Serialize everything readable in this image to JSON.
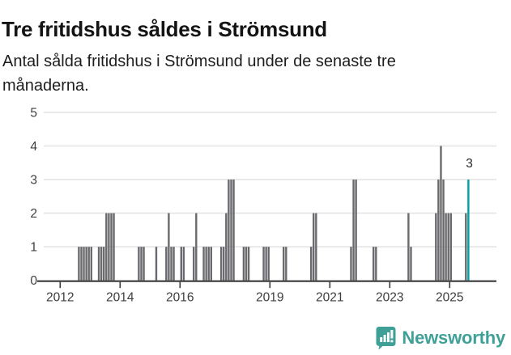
{
  "title": "Tre fritidshus såldes i Strömsund",
  "subtitle_lines": [
    "Antal sålda fritidshus i Strömsund under de senaste tre",
    "månaderna."
  ],
  "logo": {
    "text": "Newsworthy"
  },
  "colors": {
    "bar": "#6a6a6e",
    "highlight": "#00a0a0",
    "grid": "#e4e4e4",
    "axis": "#3a3a3a",
    "tick_text": "#3d3d3d",
    "annotation_text": "#2b2b2b",
    "logo": "#3fa098"
  },
  "chart_data": {
    "type": "bar",
    "title": "Tre fritidshus såldes i Strömsund",
    "subtitle": "Antal sålda fritidshus i Strömsund under de senaste tre månaderna.",
    "xlabel": "",
    "ylabel": "",
    "unit": "months",
    "x_range": [
      "2012-01",
      "2025-08"
    ],
    "ylim": [
      0,
      5
    ],
    "yticks": [
      0,
      1,
      2,
      3,
      4,
      5
    ],
    "xticks": [
      2012,
      2014,
      2016,
      2019,
      2021,
      2023,
      2025
    ],
    "grid": "horizontal",
    "points": [
      [
        "2012-08",
        1
      ],
      [
        "2012-09",
        1
      ],
      [
        "2012-10",
        1
      ],
      [
        "2012-11",
        1
      ],
      [
        "2012-12",
        1
      ],
      [
        "2013-01",
        1
      ],
      [
        "2013-04",
        1
      ],
      [
        "2013-05",
        1
      ],
      [
        "2013-06",
        1
      ],
      [
        "2013-07",
        2
      ],
      [
        "2013-08",
        2
      ],
      [
        "2013-09",
        2
      ],
      [
        "2013-10",
        2
      ],
      [
        "2014-08",
        1
      ],
      [
        "2014-09",
        1
      ],
      [
        "2014-10",
        1
      ],
      [
        "2015-03",
        1
      ],
      [
        "2015-07",
        1
      ],
      [
        "2015-08",
        2
      ],
      [
        "2015-09",
        1
      ],
      [
        "2015-10",
        1
      ],
      [
        "2016-01",
        1
      ],
      [
        "2016-02",
        1
      ],
      [
        "2016-06",
        1
      ],
      [
        "2016-07",
        2
      ],
      [
        "2016-10",
        1
      ],
      [
        "2016-11",
        1
      ],
      [
        "2016-12",
        1
      ],
      [
        "2017-01",
        1
      ],
      [
        "2017-05",
        1
      ],
      [
        "2017-06",
        1
      ],
      [
        "2017-07",
        2
      ],
      [
        "2017-08",
        3
      ],
      [
        "2017-09",
        3
      ],
      [
        "2017-10",
        3
      ],
      [
        "2018-02",
        1
      ],
      [
        "2018-03",
        1
      ],
      [
        "2018-04",
        1
      ],
      [
        "2018-10",
        1
      ],
      [
        "2018-11",
        1
      ],
      [
        "2018-12",
        1
      ],
      [
        "2019-06",
        1
      ],
      [
        "2019-07",
        1
      ],
      [
        "2020-05",
        1
      ],
      [
        "2020-06",
        2
      ],
      [
        "2020-07",
        2
      ],
      [
        "2021-09",
        1
      ],
      [
        "2021-10",
        3
      ],
      [
        "2021-11",
        3
      ],
      [
        "2022-06",
        1
      ],
      [
        "2022-07",
        1
      ],
      [
        "2023-08",
        2
      ],
      [
        "2023-09",
        1
      ],
      [
        "2024-07",
        2
      ],
      [
        "2024-08",
        3
      ],
      [
        "2024-09",
        4
      ],
      [
        "2024-10",
        3
      ],
      [
        "2024-11",
        2
      ],
      [
        "2024-12",
        2
      ],
      [
        "2025-01",
        2
      ],
      [
        "2025-07",
        2
      ],
      [
        "2025-08",
        3
      ]
    ],
    "highlight": {
      "month": "2025-08",
      "value": 3,
      "label": "3"
    }
  }
}
